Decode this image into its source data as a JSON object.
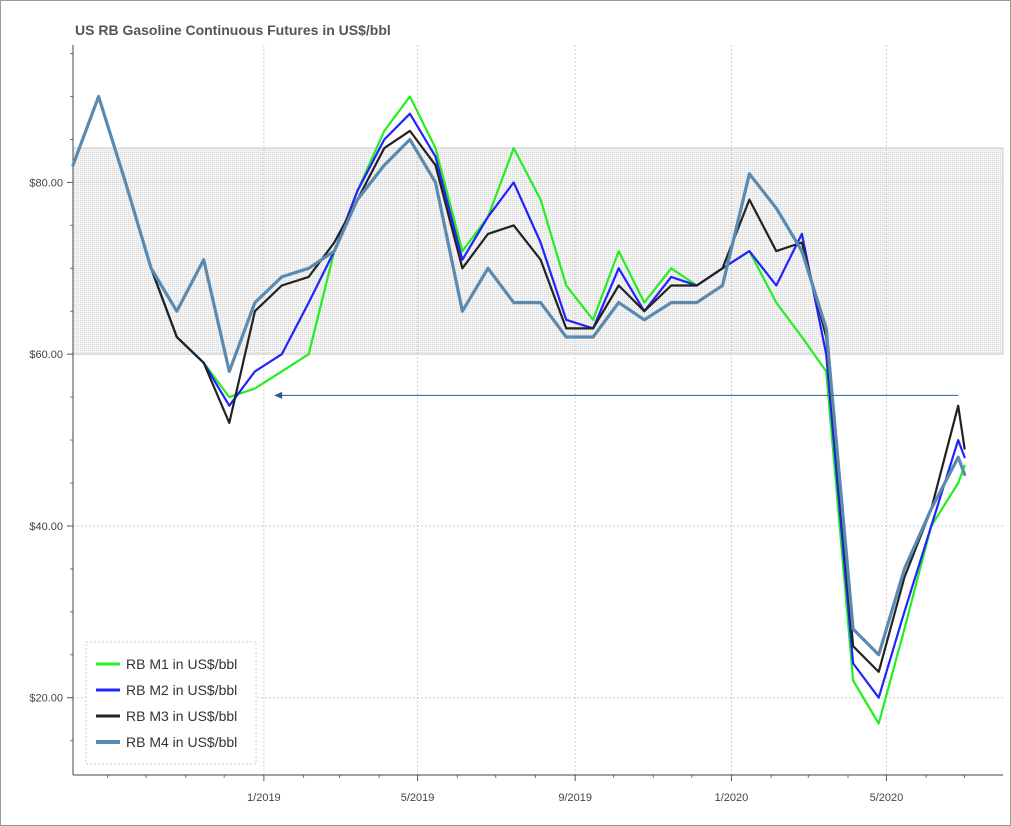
{
  "chart_data": {
    "type": "line",
    "title": "US RB Gasoline Continuous Futures in US$/bbl",
    "xlabel": "",
    "ylabel": "",
    "x_ticks": [
      "1/2019",
      "5/2019",
      "9/2019",
      "1/2020",
      "5/2020"
    ],
    "y_ticks": [
      "$20.00",
      "$40.00",
      "$60.00",
      "$80.00"
    ],
    "ylim": [
      11,
      96
    ],
    "xlim": [
      "2018-08-05",
      "2020-07-31"
    ],
    "grid": true,
    "legend_position": "bottom-left",
    "shaded_band": [
      60,
      84
    ],
    "annotation_arrow": {
      "from": [
        "2020-06-26",
        55.2
      ],
      "to": [
        "2019-01-09",
        55.2
      ]
    },
    "x": [
      "2018-08-05",
      "2018-08-25",
      "2018-09-15",
      "2018-10-05",
      "2018-10-25",
      "2018-11-15",
      "2018-12-05",
      "2018-12-25",
      "2019-01-15",
      "2019-02-05",
      "2019-02-25",
      "2019-03-15",
      "2019-04-05",
      "2019-04-25",
      "2019-05-15",
      "2019-06-05",
      "2019-06-25",
      "2019-07-15",
      "2019-08-05",
      "2019-08-25",
      "2019-09-15",
      "2019-10-05",
      "2019-10-25",
      "2019-11-15",
      "2019-12-05",
      "2019-12-25",
      "2020-01-15",
      "2020-02-05",
      "2020-02-25",
      "2020-03-15",
      "2020-04-05",
      "2020-04-25",
      "2020-05-15",
      "2020-06-05",
      "2020-06-26",
      "2020-07-01"
    ],
    "series": [
      {
        "name": "RB M1 in US$/bbl",
        "color": "#22ee22",
        "values": [
          82,
          90,
          80,
          70,
          62,
          59,
          55,
          56,
          58,
          60,
          72,
          79,
          86,
          90,
          84,
          72,
          76,
          84,
          78,
          68,
          64,
          72,
          66,
          70,
          68,
          70,
          72,
          66,
          62,
          58,
          22,
          17,
          28,
          40,
          45,
          47
        ]
      },
      {
        "name": "RB M2 in US$/bbl",
        "color": "#2222ff",
        "values": [
          82,
          90,
          80,
          70,
          62,
          59,
          54,
          58,
          60,
          66,
          72,
          79,
          85,
          88,
          83,
          71,
          76,
          80,
          73,
          64,
          63,
          70,
          65,
          69,
          68,
          70,
          72,
          68,
          74,
          60,
          24,
          20,
          30,
          40,
          50,
          48
        ]
      },
      {
        "name": "RB M3 in US$/bbl",
        "color": "#222222",
        "values": [
          82,
          90,
          80,
          70,
          62,
          59,
          52,
          65,
          68,
          69,
          73,
          78,
          84,
          86,
          82,
          70,
          74,
          75,
          71,
          63,
          63,
          68,
          65,
          68,
          68,
          70,
          78,
          72,
          73,
          62,
          26,
          23,
          34,
          42,
          54,
          49
        ]
      },
      {
        "name": "RB M4 in US$/bbl",
        "color": "#5a8ab0",
        "values": [
          82,
          90,
          80,
          70,
          65,
          71,
          58,
          66,
          69,
          70,
          72,
          78,
          82,
          85,
          80,
          65,
          70,
          66,
          66,
          62,
          62,
          66,
          64,
          66,
          66,
          68,
          81,
          77,
          72,
          63,
          28,
          25,
          35,
          42,
          48,
          46
        ]
      }
    ]
  }
}
